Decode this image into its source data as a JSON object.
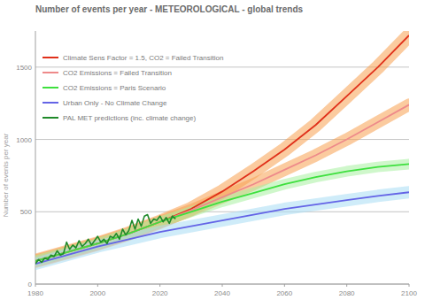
{
  "chart_data": {
    "type": "line",
    "title": "Number of events per year - METEOROLOGICAL - global trends",
    "y_label": "Number of events per year",
    "xlim": [
      1980,
      2100
    ],
    "xticks": [
      1980,
      2000,
      2020,
      2040,
      2060,
      2080,
      2100
    ],
    "ylim": [
      0,
      1750
    ],
    "yticks": [
      0,
      500,
      1000,
      1500
    ],
    "grid": true,
    "legend": "top-left",
    "series": [
      {
        "name": "Climate Sens Factor = 1.5, CO2 = Failed Transition",
        "color": "#e0301a",
        "x": [
          1980,
          1990,
          2000,
          2010,
          2020,
          2030,
          2040,
          2050,
          2060,
          2070,
          2080,
          2090,
          2100
        ],
        "values": [
          160,
          220,
          280,
          350,
          430,
          520,
          640,
          780,
          930,
          1100,
          1300,
          1500,
          1720
        ]
      },
      {
        "name": "CO2 Emissions = Failed Transition",
        "color": "#ee8a8a",
        "x": [
          1980,
          1990,
          2000,
          2010,
          2020,
          2030,
          2040,
          2050,
          2060,
          2070,
          2080,
          2090,
          2100
        ],
        "values": [
          160,
          220,
          280,
          350,
          430,
          510,
          600,
          690,
          790,
          890,
          1000,
          1120,
          1240
        ]
      },
      {
        "name": "CO2 Emissions = Paris Scenario",
        "color": "#3ee03e",
        "x": [
          1980,
          1990,
          2000,
          2010,
          2020,
          2030,
          2040,
          2050,
          2060,
          2070,
          2080,
          2090,
          2100
        ],
        "values": [
          160,
          220,
          280,
          350,
          430,
          500,
          570,
          630,
          690,
          740,
          780,
          810,
          830
        ]
      },
      {
        "name": "Urban Only - No Climate Change",
        "color": "#6464e6",
        "x": [
          1980,
          1990,
          2000,
          2010,
          2020,
          2030,
          2040,
          2050,
          2060,
          2070,
          2080,
          2090,
          2100
        ],
        "values": [
          140,
          200,
          260,
          310,
          360,
          400,
          440,
          480,
          520,
          550,
          580,
          610,
          635
        ]
      },
      {
        "name": "PAL MET predictions (inc. climate change)",
        "color": "#1f8a2a",
        "x": [
          1980,
          1981,
          1982,
          1983,
          1984,
          1985,
          1986,
          1987,
          1988,
          1989,
          1990,
          1991,
          1992,
          1993,
          1994,
          1995,
          1996,
          1997,
          1998,
          1999,
          2000,
          2001,
          2002,
          2003,
          2004,
          2005,
          2006,
          2007,
          2008,
          2009,
          2010,
          2011,
          2012,
          2013,
          2014,
          2015,
          2016,
          2017,
          2018,
          2019,
          2020,
          2021,
          2022,
          2023,
          2024,
          2025
        ],
        "values": [
          140,
          170,
          150,
          180,
          170,
          200,
          190,
          230,
          200,
          210,
          290,
          240,
          270,
          250,
          300,
          260,
          280,
          310,
          270,
          300,
          330,
          290,
          310,
          280,
          330,
          320,
          350,
          310,
          380,
          340,
          370,
          440,
          380,
          450,
          400,
          470,
          480,
          420,
          450,
          440,
          470,
          430,
          460,
          420,
          470,
          450
        ]
      }
    ]
  }
}
